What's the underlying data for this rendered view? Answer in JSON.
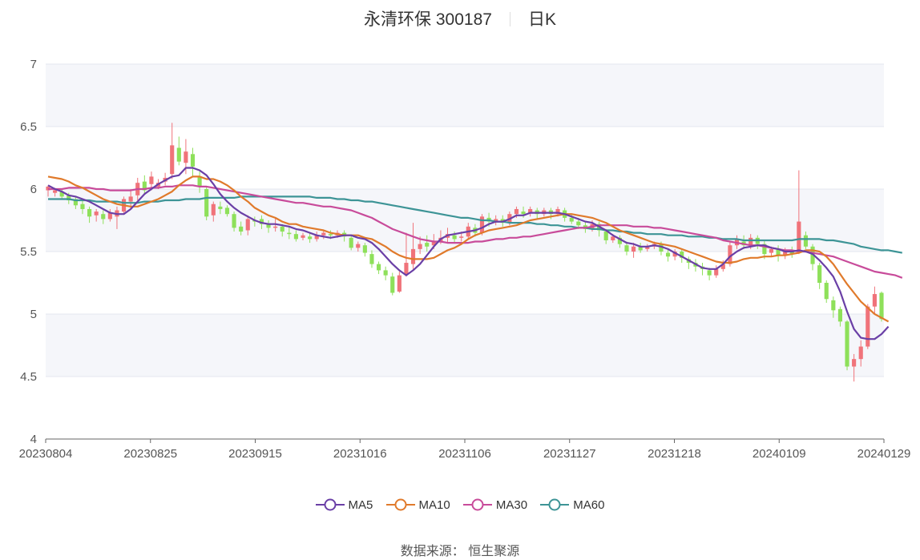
{
  "header": {
    "title": "永清环保 300187",
    "period": "日K"
  },
  "footer": {
    "source": "数据来源： 恒生聚源"
  },
  "colors": {
    "up": "#f0737a",
    "down": "#8ee05a",
    "MA5": "#6a3fa6",
    "MA10": "#e07a2b",
    "MA30": "#c84b9a",
    "MA60": "#3d9496",
    "band": "#f5f6fa",
    "grid": "#e4e7ef"
  },
  "chart_data": {
    "type": "candlestick",
    "ylim": [
      4,
      7
    ],
    "yticks": [
      "4",
      "4.5",
      "5",
      "5.5",
      "6",
      "6.5",
      "7"
    ],
    "xticks": [
      "20230804",
      "20230825",
      "20230915",
      "20231016",
      "20231106",
      "20231127",
      "20231218",
      "20240109",
      "20240129"
    ],
    "grid": true,
    "legend_position": "bottom",
    "legend": [
      "MA5",
      "MA10",
      "MA30",
      "MA60"
    ],
    "candles": [
      [
        5.99,
        6.02,
        5.94,
        6.03
      ],
      [
        5.97,
        5.99,
        5.94,
        6.01
      ],
      [
        5.98,
        5.94,
        5.92,
        6.0
      ],
      [
        5.95,
        5.91,
        5.88,
        5.97
      ],
      [
        5.92,
        5.87,
        5.84,
        5.94
      ],
      [
        5.88,
        5.84,
        5.8,
        5.91
      ],
      [
        5.84,
        5.78,
        5.73,
        5.86
      ],
      [
        5.79,
        5.82,
        5.74,
        5.84
      ],
      [
        5.8,
        5.76,
        5.72,
        5.83
      ],
      [
        5.76,
        5.81,
        5.74,
        5.84
      ],
      [
        5.78,
        5.83,
        5.68,
        5.86
      ],
      [
        5.82,
        5.92,
        5.8,
        5.94
      ],
      [
        5.9,
        5.94,
        5.84,
        6.0
      ],
      [
        5.95,
        6.05,
        5.91,
        6.09
      ],
      [
        6.06,
        5.99,
        5.96,
        6.11
      ],
      [
        6.04,
        6.1,
        5.99,
        6.14
      ],
      [
        6.02,
        6.05,
        6.0,
        6.08
      ],
      [
        6.06,
        6.09,
        6.03,
        6.13
      ],
      [
        6.12,
        6.35,
        6.08,
        6.53
      ],
      [
        6.33,
        6.22,
        6.19,
        6.42
      ],
      [
        6.21,
        6.3,
        6.12,
        6.4
      ],
      [
        6.28,
        6.18,
        6.1,
        6.33
      ],
      [
        6.1,
        6.02,
        5.97,
        6.14
      ],
      [
        6.0,
        5.78,
        5.75,
        6.02
      ],
      [
        5.79,
        5.88,
        5.74,
        5.9
      ],
      [
        5.86,
        5.84,
        5.8,
        5.9
      ],
      [
        5.85,
        5.8,
        5.78,
        5.87
      ],
      [
        5.8,
        5.69,
        5.66,
        5.82
      ],
      [
        5.7,
        5.66,
        5.63,
        5.74
      ],
      [
        5.67,
        5.76,
        5.63,
        5.79
      ],
      [
        5.75,
        5.74,
        5.7,
        5.78
      ],
      [
        5.76,
        5.72,
        5.68,
        5.79
      ],
      [
        5.72,
        5.69,
        5.65,
        5.75
      ],
      [
        5.69,
        5.7,
        5.66,
        5.77
      ],
      [
        5.7,
        5.66,
        5.62,
        5.72
      ],
      [
        5.65,
        5.64,
        5.6,
        5.7
      ],
      [
        5.64,
        5.6,
        5.58,
        5.67
      ],
      [
        5.61,
        5.63,
        5.59,
        5.65
      ],
      [
        5.62,
        5.6,
        5.57,
        5.65
      ],
      [
        5.6,
        5.63,
        5.58,
        5.66
      ],
      [
        5.63,
        5.65,
        5.6,
        5.67
      ],
      [
        5.64,
        5.63,
        5.6,
        5.67
      ],
      [
        5.63,
        5.65,
        5.61,
        5.67
      ],
      [
        5.65,
        5.62,
        5.58,
        5.67
      ],
      [
        5.61,
        5.53,
        5.51,
        5.63
      ],
      [
        5.53,
        5.56,
        5.5,
        5.58
      ],
      [
        5.55,
        5.49,
        5.46,
        5.57
      ],
      [
        5.48,
        5.4,
        5.37,
        5.51
      ],
      [
        5.4,
        5.35,
        5.32,
        5.42
      ],
      [
        5.35,
        5.31,
        5.27,
        5.38
      ],
      [
        5.3,
        5.17,
        5.15,
        5.33
      ],
      [
        5.18,
        5.31,
        5.17,
        5.34
      ],
      [
        5.32,
        5.41,
        5.3,
        5.65
      ],
      [
        5.4,
        5.52,
        5.36,
        5.73
      ],
      [
        5.52,
        5.56,
        5.48,
        5.62
      ],
      [
        5.57,
        5.54,
        5.5,
        5.63
      ],
      [
        5.55,
        5.58,
        5.52,
        5.64
      ],
      [
        5.58,
        5.61,
        5.56,
        5.67
      ],
      [
        5.61,
        5.64,
        5.57,
        5.69
      ],
      [
        5.63,
        5.6,
        5.57,
        5.66
      ],
      [
        5.61,
        5.62,
        5.58,
        5.66
      ],
      [
        5.62,
        5.7,
        5.6,
        5.73
      ],
      [
        5.69,
        5.65,
        5.62,
        5.72
      ],
      [
        5.65,
        5.78,
        5.63,
        5.8
      ],
      [
        5.77,
        5.74,
        5.7,
        5.81
      ],
      [
        5.74,
        5.76,
        5.71,
        5.79
      ],
      [
        5.76,
        5.73,
        5.7,
        5.79
      ],
      [
        5.73,
        5.8,
        5.71,
        5.82
      ],
      [
        5.8,
        5.84,
        5.77,
        5.86
      ],
      [
        5.82,
        5.8,
        5.77,
        5.86
      ],
      [
        5.81,
        5.84,
        5.78,
        5.86
      ],
      [
        5.83,
        5.8,
        5.76,
        5.85
      ],
      [
        5.8,
        5.83,
        5.78,
        5.85
      ],
      [
        5.83,
        5.8,
        5.76,
        5.85
      ],
      [
        5.8,
        5.84,
        5.78,
        5.86
      ],
      [
        5.83,
        5.77,
        5.74,
        5.85
      ],
      [
        5.77,
        5.74,
        5.72,
        5.8
      ],
      [
        5.74,
        5.71,
        5.68,
        5.77
      ],
      [
        5.71,
        5.68,
        5.65,
        5.74
      ],
      [
        5.68,
        5.72,
        5.66,
        5.75
      ],
      [
        5.72,
        5.67,
        5.62,
        5.74
      ],
      [
        5.66,
        5.59,
        5.56,
        5.68
      ],
      [
        5.59,
        5.62,
        5.57,
        5.64
      ],
      [
        5.61,
        5.56,
        5.53,
        5.63
      ],
      [
        5.55,
        5.5,
        5.47,
        5.58
      ],
      [
        5.5,
        5.54,
        5.45,
        5.57
      ],
      [
        5.54,
        5.51,
        5.49,
        5.57
      ],
      [
        5.52,
        5.54,
        5.5,
        5.56
      ],
      [
        5.54,
        5.56,
        5.52,
        5.58
      ],
      [
        5.56,
        5.5,
        5.47,
        5.58
      ],
      [
        5.49,
        5.46,
        5.42,
        5.52
      ],
      [
        5.46,
        5.5,
        5.43,
        5.52
      ],
      [
        5.5,
        5.45,
        5.41,
        5.52
      ],
      [
        5.44,
        5.41,
        5.36,
        5.46
      ],
      [
        5.41,
        5.38,
        5.34,
        5.44
      ],
      [
        5.38,
        5.36,
        5.31,
        5.41
      ],
      [
        5.35,
        5.31,
        5.27,
        5.37
      ],
      [
        5.31,
        5.36,
        5.29,
        5.39
      ],
      [
        5.36,
        5.4,
        5.34,
        5.43
      ],
      [
        5.4,
        5.55,
        5.38,
        5.58
      ],
      [
        5.55,
        5.6,
        5.52,
        5.63
      ],
      [
        5.58,
        5.55,
        5.52,
        5.63
      ],
      [
        5.55,
        5.61,
        5.52,
        5.64
      ],
      [
        5.61,
        5.56,
        5.52,
        5.63
      ],
      [
        5.56,
        5.48,
        5.44,
        5.59
      ],
      [
        5.49,
        5.52,
        5.46,
        5.54
      ],
      [
        5.52,
        5.47,
        5.42,
        5.55
      ],
      [
        5.47,
        5.51,
        5.44,
        5.53
      ],
      [
        5.51,
        5.48,
        5.45,
        5.54
      ],
      [
        5.5,
        5.74,
        5.48,
        6.15
      ],
      [
        5.63,
        5.54,
        5.52,
        5.66
      ],
      [
        5.54,
        5.4,
        5.35,
        5.56
      ],
      [
        5.39,
        5.25,
        5.2,
        5.41
      ],
      [
        5.25,
        5.12,
        5.09,
        5.27
      ],
      [
        5.11,
        5.03,
        4.97,
        5.14
      ],
      [
        5.04,
        4.94,
        4.9,
        5.06
      ],
      [
        4.94,
        4.58,
        4.55,
        4.95
      ],
      [
        4.58,
        4.64,
        4.46,
        4.68
      ],
      [
        4.64,
        4.74,
        4.58,
        4.79
      ],
      [
        4.74,
        5.06,
        4.72,
        5.08
      ],
      [
        5.06,
        5.16,
        5.0,
        5.22
      ],
      [
        5.17,
        4.96,
        4.94,
        5.18
      ]
    ],
    "ma": {
      "MA5": [
        6.03,
        6.0,
        5.98,
        5.95,
        5.94,
        5.92,
        5.9,
        5.87,
        5.84,
        5.81,
        5.8,
        5.8,
        5.84,
        5.9,
        5.96,
        6.0,
        6.04,
        6.07,
        6.1,
        6.11,
        6.17,
        6.17,
        6.15,
        6.11,
        6.04,
        5.96,
        5.9,
        5.85,
        5.81,
        5.78,
        5.75,
        5.73,
        5.72,
        5.72,
        5.71,
        5.7,
        5.68,
        5.67,
        5.65,
        5.63,
        5.62,
        5.61,
        5.62,
        5.63,
        5.63,
        5.61,
        5.6,
        5.57,
        5.52,
        5.46,
        5.4,
        5.35,
        5.31,
        5.35,
        5.4,
        5.47,
        5.54,
        5.6,
        5.63,
        5.64,
        5.65,
        5.66,
        5.67,
        5.69,
        5.72,
        5.74,
        5.74,
        5.76,
        5.79,
        5.79,
        5.81,
        5.81,
        5.81,
        5.81,
        5.81,
        5.8,
        5.78,
        5.76,
        5.74,
        5.73,
        5.7,
        5.67,
        5.63,
        5.6,
        5.57,
        5.56,
        5.54,
        5.54,
        5.55,
        5.54,
        5.52,
        5.49,
        5.46,
        5.43,
        5.4,
        5.37,
        5.36,
        5.36,
        5.4,
        5.46,
        5.5,
        5.53,
        5.54,
        5.55,
        5.55,
        5.53,
        5.52,
        5.5,
        5.5,
        5.51,
        5.5,
        5.48,
        5.43,
        5.37,
        5.3,
        5.18,
        5.02,
        4.88,
        4.81,
        4.8,
        4.8,
        4.84,
        4.9
      ],
      "MA10": [
        6.1,
        6.09,
        6.08,
        6.06,
        6.03,
        6.01,
        5.98,
        5.95,
        5.92,
        5.9,
        5.88,
        5.87,
        5.86,
        5.86,
        5.88,
        5.9,
        5.92,
        5.95,
        5.98,
        6.03,
        6.07,
        6.1,
        6.1,
        6.08,
        6.08,
        6.06,
        6.03,
        5.99,
        5.94,
        5.9,
        5.85,
        5.82,
        5.79,
        5.77,
        5.74,
        5.72,
        5.72,
        5.7,
        5.69,
        5.68,
        5.67,
        5.65,
        5.64,
        5.63,
        5.63,
        5.63,
        5.61,
        5.6,
        5.57,
        5.54,
        5.5,
        5.47,
        5.45,
        5.44,
        5.44,
        5.44,
        5.45,
        5.48,
        5.51,
        5.53,
        5.56,
        5.6,
        5.63,
        5.65,
        5.67,
        5.68,
        5.69,
        5.7,
        5.71,
        5.73,
        5.75,
        5.76,
        5.77,
        5.78,
        5.79,
        5.8,
        5.8,
        5.79,
        5.78,
        5.77,
        5.75,
        5.73,
        5.7,
        5.67,
        5.65,
        5.63,
        5.61,
        5.59,
        5.57,
        5.56,
        5.55,
        5.54,
        5.52,
        5.5,
        5.48,
        5.46,
        5.44,
        5.42,
        5.41,
        5.41,
        5.42,
        5.44,
        5.45,
        5.45,
        5.46,
        5.46,
        5.47,
        5.47,
        5.48,
        5.49,
        5.51,
        5.51,
        5.5,
        5.46,
        5.4,
        5.32,
        5.24,
        5.17,
        5.1,
        5.05,
        5.0,
        4.97,
        4.94
      ],
      "MA30": [
        6.0,
        6.0,
        6.0,
        6.01,
        6.01,
        6.01,
        6.01,
        6.0,
        6.0,
        5.99,
        5.99,
        5.99,
        5.99,
        6.0,
        6.0,
        6.01,
        6.01,
        6.02,
        6.02,
        6.03,
        6.03,
        6.03,
        6.02,
        6.02,
        6.01,
        6.0,
        5.99,
        5.98,
        5.97,
        5.96,
        5.95,
        5.94,
        5.93,
        5.92,
        5.91,
        5.9,
        5.89,
        5.89,
        5.88,
        5.87,
        5.86,
        5.86,
        5.85,
        5.84,
        5.83,
        5.81,
        5.79,
        5.77,
        5.74,
        5.71,
        5.68,
        5.66,
        5.64,
        5.62,
        5.6,
        5.59,
        5.58,
        5.58,
        5.57,
        5.57,
        5.57,
        5.57,
        5.58,
        5.58,
        5.59,
        5.6,
        5.6,
        5.61,
        5.61,
        5.62,
        5.62,
        5.63,
        5.64,
        5.65,
        5.66,
        5.67,
        5.68,
        5.69,
        5.69,
        5.7,
        5.71,
        5.71,
        5.71,
        5.71,
        5.71,
        5.7,
        5.7,
        5.7,
        5.69,
        5.69,
        5.68,
        5.67,
        5.66,
        5.65,
        5.64,
        5.63,
        5.62,
        5.61,
        5.59,
        5.58,
        5.57,
        5.56,
        5.55,
        5.55,
        5.54,
        5.53,
        5.52,
        5.51,
        5.51,
        5.5,
        5.5,
        5.49,
        5.48,
        5.47,
        5.46,
        5.44,
        5.42,
        5.4,
        5.38,
        5.36,
        5.34,
        5.33,
        5.32,
        5.31,
        5.29
      ],
      "MA60": [
        5.92,
        5.92,
        5.92,
        5.92,
        5.91,
        5.91,
        5.91,
        5.9,
        5.9,
        5.9,
        5.9,
        5.89,
        5.89,
        5.89,
        5.9,
        5.9,
        5.9,
        5.91,
        5.91,
        5.91,
        5.92,
        5.92,
        5.92,
        5.93,
        5.93,
        5.93,
        5.93,
        5.93,
        5.94,
        5.94,
        5.94,
        5.94,
        5.94,
        5.94,
        5.94,
        5.94,
        5.94,
        5.94,
        5.94,
        5.93,
        5.93,
        5.93,
        5.92,
        5.92,
        5.91,
        5.91,
        5.9,
        5.9,
        5.89,
        5.88,
        5.87,
        5.86,
        5.85,
        5.84,
        5.83,
        5.82,
        5.81,
        5.8,
        5.79,
        5.78,
        5.77,
        5.77,
        5.76,
        5.75,
        5.75,
        5.74,
        5.74,
        5.73,
        5.73,
        5.73,
        5.73,
        5.72,
        5.72,
        5.71,
        5.71,
        5.7,
        5.7,
        5.69,
        5.69,
        5.68,
        5.68,
        5.67,
        5.67,
        5.66,
        5.66,
        5.65,
        5.65,
        5.64,
        5.64,
        5.64,
        5.63,
        5.63,
        5.63,
        5.62,
        5.62,
        5.62,
        5.61,
        5.61,
        5.6,
        5.6,
        5.6,
        5.59,
        5.59,
        5.59,
        5.59,
        5.59,
        5.59,
        5.59,
        5.59,
        5.6,
        5.6,
        5.6,
        5.6,
        5.59,
        5.59,
        5.58,
        5.57,
        5.56,
        5.54,
        5.53,
        5.52,
        5.51,
        5.51,
        5.5,
        5.49
      ]
    }
  }
}
